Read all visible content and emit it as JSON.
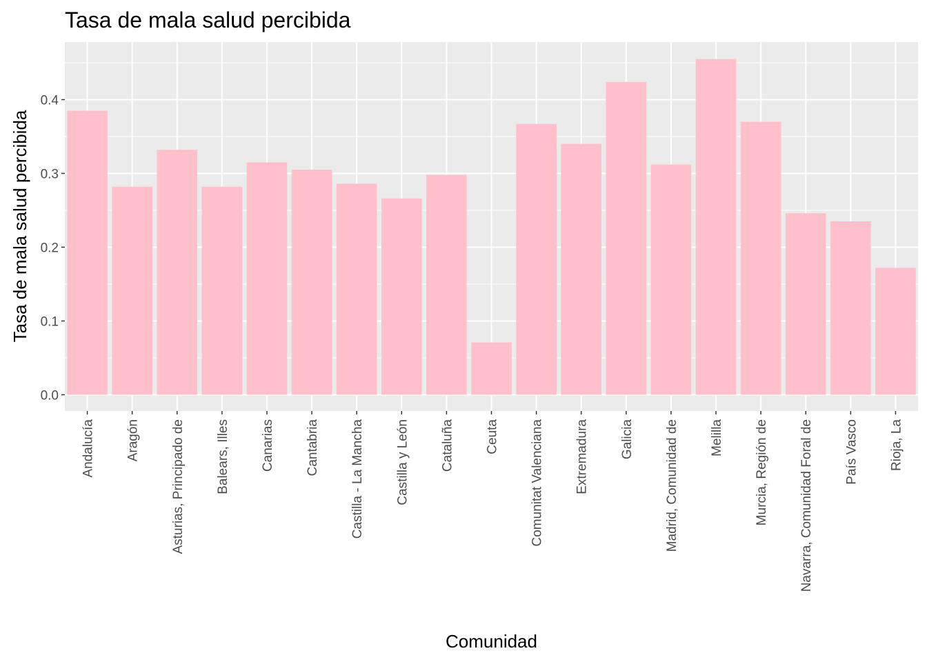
{
  "chart_data": {
    "type": "bar",
    "title": "Tasa de mala salud percibida",
    "xlabel": "Comunidad",
    "ylabel": "Tasa de mala salud percibida",
    "categories": [
      "Andalucía",
      "Aragón",
      "Asturias, Principado de",
      "Balears, Illes",
      "Canarias",
      "Cantabria",
      "Castilla - La Mancha",
      "Castilla y León",
      "Cataluña",
      "Ceuta",
      "Comunitat Valenciana",
      "Extremadura",
      "Galicia",
      "Madrid, Comunidad de",
      "Melilla",
      "Murcia, Región de",
      "Navarra, Comunidad Foral de",
      "País Vasco",
      "Rioja, La"
    ],
    "values": [
      0.385,
      0.282,
      0.332,
      0.282,
      0.315,
      0.305,
      0.286,
      0.266,
      0.298,
      0.071,
      0.367,
      0.34,
      0.424,
      0.312,
      0.455,
      0.37,
      0.246,
      0.235,
      0.172
    ],
    "ylim": [
      -0.022,
      0.478
    ],
    "yticks": [
      0.0,
      0.1,
      0.2,
      0.3,
      0.4
    ],
    "ytick_labels": [
      "0.0",
      "0.1",
      "0.2",
      "0.3",
      "0.4"
    ],
    "grid": true,
    "legend": "none",
    "colors": {
      "bar": "#ffc0cb",
      "panel_background": "#ebebeb",
      "grid": "#ffffff",
      "tick_text": "#4d4d4d",
      "text": "#000000"
    }
  }
}
